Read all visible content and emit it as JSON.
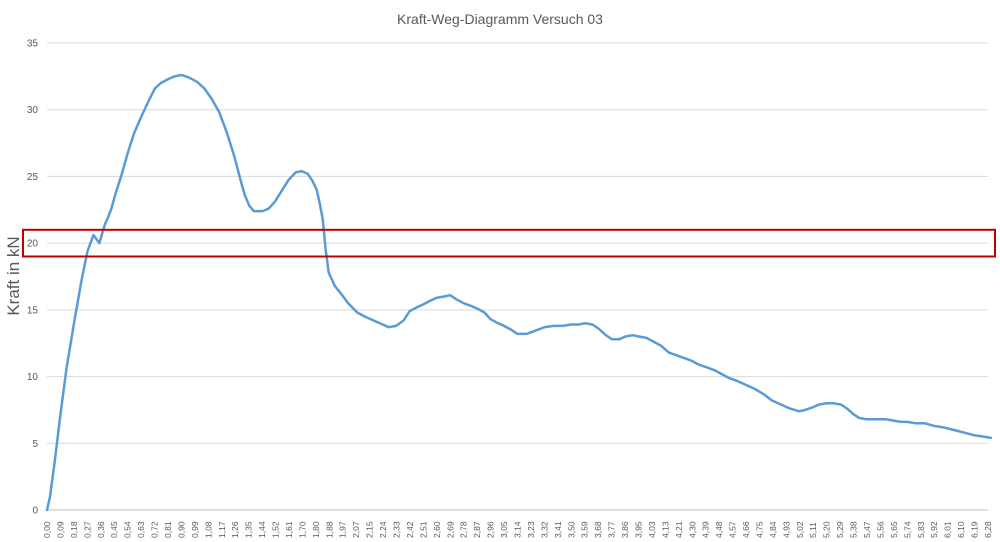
{
  "chart_data": {
    "type": "line",
    "title": "Kraft-Weg-Diagramm Versuch 03",
    "ylabel": "Kraft in kN",
    "xlabel": "",
    "ylim": [
      0,
      35
    ],
    "yticks": [
      "0",
      "5",
      "10",
      "15",
      "20",
      "25",
      "30",
      "35"
    ],
    "grid": "horizontal",
    "legend": "none",
    "colors": {
      "line": "#5b9bd5",
      "highlight": "#c00000",
      "grid": "#d9d9d9",
      "text": "#595959"
    },
    "xticks": [
      "0,00",
      "0,09",
      "0,18",
      "0,27",
      "0,36",
      "0,45",
      "0,54",
      "0,63",
      "0,72",
      "0,81",
      "0,90",
      "0,99",
      "1,08",
      "1,17",
      "1,26",
      "1,35",
      "1,44",
      "1,52",
      "1,61",
      "1,70",
      "1,80",
      "1,88",
      "1,97",
      "2,07",
      "2,15",
      "2,24",
      "2,33",
      "2,42",
      "2,51",
      "2,60",
      "2,69",
      "2,78",
      "2,87",
      "2,96",
      "3,05",
      "3,14",
      "3,23",
      "3,32",
      "3,41",
      "3,50",
      "3,59",
      "3,68",
      "3,77",
      "3,86",
      "3,95",
      "4,03",
      "4,13",
      "4,21",
      "4,30",
      "4,39",
      "4,48",
      "4,57",
      "4,66",
      "4,75",
      "4,84",
      "4,93",
      "5,02",
      "5,11",
      "5,20",
      "5,29",
      "5,38",
      "5,47",
      "5,56",
      "5,65",
      "5,74",
      "5,83",
      "5,92",
      "6,01",
      "6,10",
      "6,19",
      "6,28"
    ],
    "x": [
      0.0,
      0.02,
      0.05,
      0.09,
      0.13,
      0.18,
      0.23,
      0.27,
      0.31,
      0.35,
      0.37,
      0.39,
      0.41,
      0.43,
      0.46,
      0.5,
      0.54,
      0.58,
      0.63,
      0.68,
      0.72,
      0.76,
      0.81,
      0.85,
      0.9,
      0.95,
      1.0,
      1.05,
      1.1,
      1.15,
      1.2,
      1.25,
      1.29,
      1.32,
      1.35,
      1.38,
      1.41,
      1.44,
      1.48,
      1.52,
      1.57,
      1.61,
      1.66,
      1.7,
      1.74,
      1.77,
      1.8,
      1.82,
      1.84,
      1.86,
      1.88,
      1.92,
      1.97,
      2.01,
      2.07,
      2.12,
      2.18,
      2.24,
      2.28,
      2.33,
      2.38,
      2.42,
      2.47,
      2.51,
      2.56,
      2.6,
      2.65,
      2.69,
      2.73,
      2.78,
      2.83,
      2.87,
      2.92,
      2.96,
      3.01,
      3.05,
      3.1,
      3.14,
      3.2,
      3.25,
      3.32,
      3.38,
      3.44,
      3.5,
      3.55,
      3.59,
      3.64,
      3.68,
      3.73,
      3.77,
      3.82,
      3.86,
      3.91,
      3.95,
      4.0,
      4.05,
      4.1,
      4.15,
      4.2,
      4.25,
      4.3,
      4.35,
      4.4,
      4.45,
      4.5,
      4.55,
      4.6,
      4.66,
      4.72,
      4.78,
      4.84,
      4.9,
      4.96,
      5.02,
      5.06,
      5.11,
      5.15,
      5.2,
      5.25,
      5.3,
      5.34,
      5.38,
      5.42,
      5.47,
      5.51,
      5.56,
      5.6,
      5.65,
      5.7,
      5.74,
      5.8,
      5.86,
      5.92,
      5.98,
      6.05,
      6.12,
      6.19,
      6.25,
      6.3
    ],
    "values": [
      0.0,
      1.0,
      3.5,
      7.2,
      10.6,
      14.0,
      17.2,
      19.4,
      20.6,
      20.0,
      20.8,
      21.5,
      22.0,
      22.6,
      23.8,
      25.2,
      26.8,
      28.2,
      29.5,
      30.7,
      31.6,
      32.0,
      32.3,
      32.5,
      32.6,
      32.4,
      32.1,
      31.6,
      30.8,
      29.8,
      28.3,
      26.5,
      24.8,
      23.6,
      22.8,
      22.4,
      22.4,
      22.4,
      22.6,
      23.1,
      24.0,
      24.7,
      25.3,
      25.4,
      25.2,
      24.7,
      24.0,
      23.0,
      21.8,
      19.5,
      17.8,
      16.8,
      16.1,
      15.5,
      14.8,
      14.5,
      14.2,
      13.9,
      13.7,
      13.8,
      14.2,
      14.9,
      15.2,
      15.4,
      15.7,
      15.9,
      16.0,
      16.1,
      15.8,
      15.5,
      15.3,
      15.1,
      14.8,
      14.3,
      14.0,
      13.8,
      13.5,
      13.2,
      13.2,
      13.4,
      13.7,
      13.8,
      13.8,
      13.9,
      13.9,
      14.0,
      13.9,
      13.6,
      13.1,
      12.8,
      12.8,
      13.0,
      13.1,
      13.0,
      12.9,
      12.6,
      12.3,
      11.8,
      11.6,
      11.4,
      11.2,
      10.9,
      10.7,
      10.5,
      10.2,
      9.9,
      9.7,
      9.4,
      9.1,
      8.7,
      8.2,
      7.9,
      7.6,
      7.4,
      7.5,
      7.7,
      7.9,
      8.0,
      8.0,
      7.9,
      7.6,
      7.2,
      6.9,
      6.8,
      6.8,
      6.8,
      6.8,
      6.7,
      6.6,
      6.6,
      6.5,
      6.5,
      6.3,
      6.2,
      6.0,
      5.8,
      5.6,
      5.5,
      5.4
    ],
    "highlight_band": {
      "ymin": 19.0,
      "ymax": 21.0
    }
  }
}
